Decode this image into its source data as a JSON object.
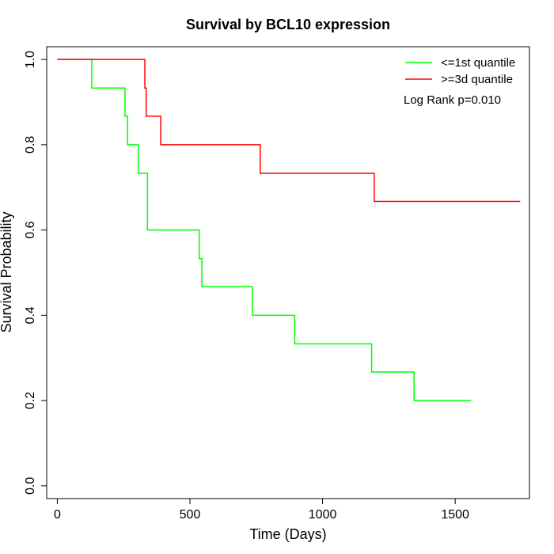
{
  "chart_data": {
    "type": "line",
    "title": "Survival by BCL10 expression",
    "xlabel": "Time (Days)",
    "ylabel": "Survival Probability",
    "xlim": [
      -40,
      1780
    ],
    "ylim": [
      -0.03,
      1.03
    ],
    "x_ticks": [
      0,
      500,
      1000,
      1500
    ],
    "x_tick_labels": [
      "0",
      "500",
      "1000",
      "1500"
    ],
    "y_ticks": [
      0.0,
      0.2,
      0.4,
      0.6,
      0.8,
      1.0
    ],
    "y_tick_labels": [
      "0.0",
      "0.2",
      "0.4",
      "0.6",
      "0.8",
      "1.0"
    ],
    "grid": false,
    "legend_position": "top-right",
    "annotation": "Log Rank p=0.010",
    "series": [
      {
        "name": "<=1st quantile",
        "color": "#00ff00",
        "steps": [
          [
            0,
            1.0
          ],
          [
            130,
            0.933
          ],
          [
            255,
            0.867
          ],
          [
            265,
            0.8
          ],
          [
            305,
            0.733
          ],
          [
            340,
            0.6
          ],
          [
            535,
            0.533
          ],
          [
            545,
            0.467
          ],
          [
            735,
            0.4
          ],
          [
            895,
            0.333
          ],
          [
            1185,
            0.267
          ],
          [
            1345,
            0.2
          ],
          [
            1560,
            0.2
          ]
        ]
      },
      {
        "name": ">=3d quantile",
        "color": "#ff0000",
        "steps": [
          [
            0,
            1.0
          ],
          [
            330,
            0.933
          ],
          [
            335,
            0.867
          ],
          [
            390,
            0.8
          ],
          [
            765,
            0.733
          ],
          [
            1195,
            0.667
          ],
          [
            1745,
            0.667
          ]
        ]
      }
    ]
  }
}
